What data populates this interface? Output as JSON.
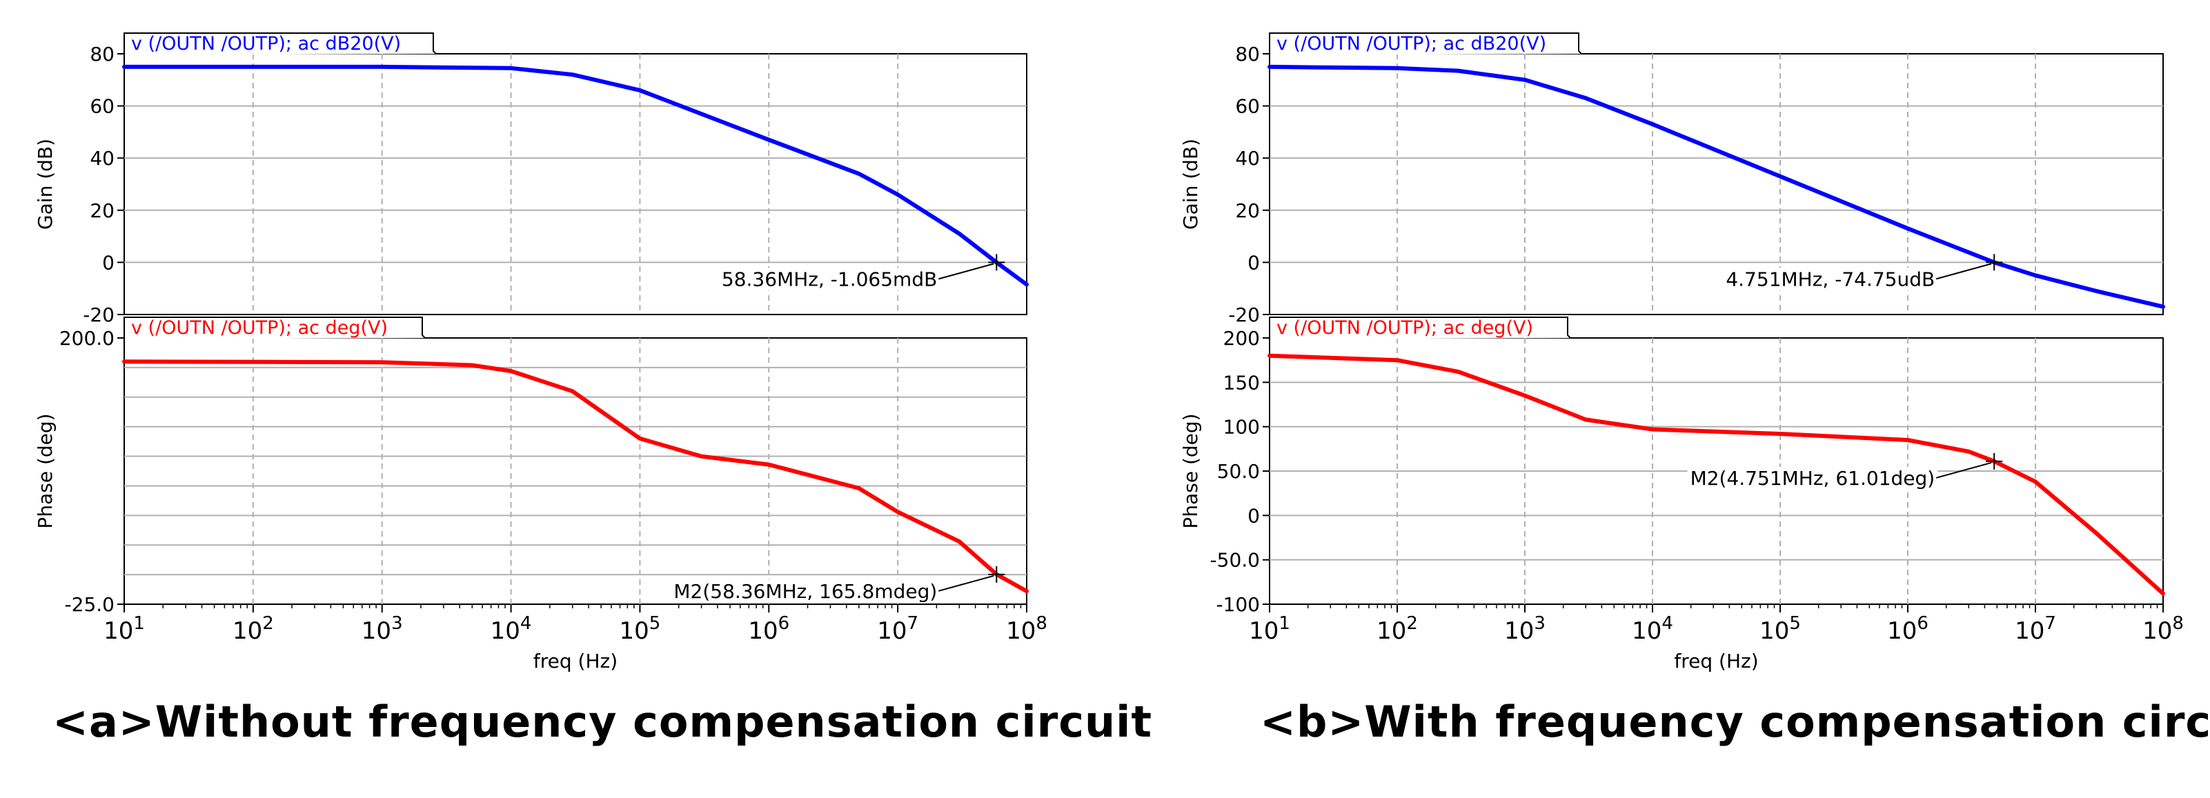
{
  "colors": {
    "gain": "#0000ff",
    "phase": "#ff0000",
    "grid": "#b0b0b0",
    "axis": "#000000"
  },
  "captions": {
    "a": "<a>Without frequency compensation circuit",
    "b": "<b>With frequency compensation circuit"
  },
  "chart_data": [
    {
      "id": "a-gain",
      "type": "line",
      "title": "v (/OUTN /OUTP); ac dB20(V)",
      "ylabel": "Gain (dB)",
      "xlabel": "",
      "x_scale": "log",
      "xlim": [
        10,
        100000000
      ],
      "ylim": [
        -20,
        80
      ],
      "yticks": [
        -20,
        0,
        20,
        40,
        60,
        80
      ],
      "ytick_labels": [
        "-20",
        "0",
        "20",
        "40",
        "60",
        "80"
      ],
      "grid": true,
      "series": [
        {
          "color": "#0000ff",
          "x": [
            10,
            1000,
            10000,
            30000,
            100000,
            1000000,
            5000000,
            10000000,
            30000000,
            58360000,
            100000000
          ],
          "y": [
            75,
            75,
            74.5,
            72,
            66,
            47,
            34,
            26,
            11,
            0,
            -8.5
          ]
        }
      ],
      "marker": {
        "x": 58360000,
        "y": 0,
        "label": "58.36MHz, -1.065mdB"
      }
    },
    {
      "id": "a-phase",
      "type": "line",
      "title": "v (/OUTN /OUTP); ac deg(V)",
      "ylabel": "Phase (deg)",
      "xlabel": "freq (Hz)",
      "x_scale": "log",
      "xlim": [
        10,
        100000000
      ],
      "ylim": [
        -25,
        200
      ],
      "yticks": [
        -25,
        200
      ],
      "ytick_labels": [
        "-25.0",
        "200.0"
      ],
      "grid": true,
      "series": [
        {
          "color": "#ff0000",
          "x": [
            10,
            1000,
            5000,
            10000,
            30000,
            100000,
            300000,
            1000000,
            5000000,
            10000000,
            30000000,
            58360000,
            100000000
          ],
          "y": [
            180,
            179.5,
            177,
            172,
            155,
            115,
            100,
            93,
            73,
            53,
            28,
            0.166,
            -14
          ]
        }
      ],
      "marker": {
        "x": 58360000,
        "y": 0.166,
        "label": "M2(58.36MHz, 165.8mdeg)"
      }
    },
    {
      "id": "b-gain",
      "type": "line",
      "title": "v (/OUTN /OUTP); ac dB20(V)",
      "ylabel": "Gain (dB)",
      "xlabel": "",
      "x_scale": "log",
      "xlim": [
        10,
        100000000
      ],
      "ylim": [
        -20,
        80
      ],
      "yticks": [
        -20,
        0,
        20,
        40,
        60,
        80
      ],
      "ytick_labels": [
        "-20",
        "0",
        "20",
        "40",
        "60",
        "80"
      ],
      "grid": true,
      "series": [
        {
          "color": "#0000ff",
          "x": [
            10,
            100,
            300,
            1000,
            3000,
            10000,
            100000,
            1000000,
            4751000,
            10000000,
            30000000,
            100000000
          ],
          "y": [
            75,
            74.5,
            73.5,
            70,
            63,
            53,
            33,
            13,
            0,
            -5,
            -11,
            -17
          ]
        }
      ],
      "marker": {
        "x": 4751000,
        "y": 0,
        "label": "4.751MHz, -74.75udB"
      }
    },
    {
      "id": "b-phase",
      "type": "line",
      "title": "v (/OUTN /OUTP); ac deg(V)",
      "ylabel": "Phase (deg)",
      "xlabel": "freq (Hz)",
      "x_scale": "log",
      "xlim": [
        10,
        100000000
      ],
      "ylim": [
        -100,
        200
      ],
      "yticks": [
        -100,
        -50,
        0,
        50,
        100,
        150,
        200
      ],
      "ytick_labels": [
        "-100",
        "-50.0",
        "0",
        "50.0",
        "100",
        "150",
        "200"
      ],
      "grid": true,
      "series": [
        {
          "color": "#ff0000",
          "x": [
            10,
            100,
            300,
            1000,
            3000,
            10000,
            100000,
            1000000,
            3000000,
            4751000,
            10000000,
            30000000,
            100000000
          ],
          "y": [
            180,
            175,
            162,
            135,
            108,
            97,
            92,
            85,
            72,
            61.01,
            38,
            -20,
            -88
          ]
        }
      ],
      "marker": {
        "x": 4751000,
        "y": 61.01,
        "label": "M2(4.751MHz, 61.01deg)"
      }
    }
  ]
}
